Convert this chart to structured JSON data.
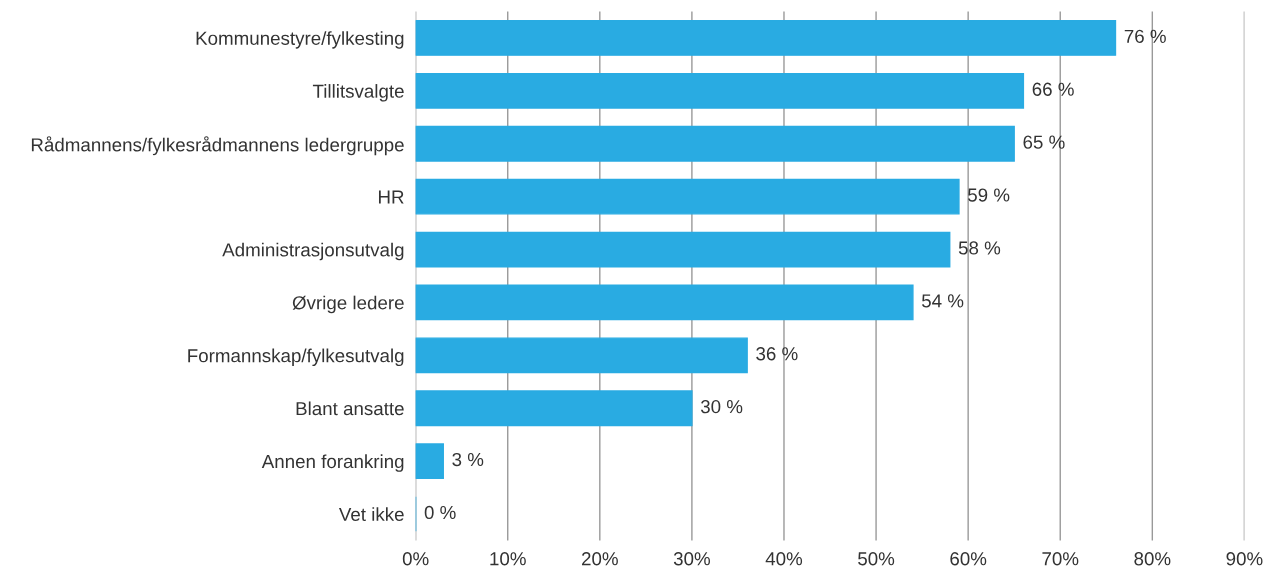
{
  "chart_data": {
    "type": "bar",
    "orientation": "horizontal",
    "categories": [
      "Kommunestyre/fylkesting",
      "Tillitsvalgte",
      "Rådmannens/fylkesrådmannens ledergruppe",
      "HR",
      "Administrasjonsutvalg",
      "Øvrige ledere",
      "Formannskap/fylkesutvalg",
      "Blant ansatte",
      "Annen forankring",
      "Vet ikke"
    ],
    "values": [
      76,
      66,
      65,
      59,
      58,
      54,
      36,
      30,
      3,
      0
    ],
    "value_labels": [
      "76 %",
      "66 %",
      "65 %",
      "59 %",
      "58 %",
      "54 %",
      "36 %",
      "30 %",
      "3 %",
      "0 %"
    ],
    "color": "#29abe2",
    "xlim": [
      0,
      90
    ],
    "xticks": [
      {
        "value": 0,
        "label": "0%"
      },
      {
        "value": 10,
        "label": "10%"
      },
      {
        "value": 20,
        "label": "20%"
      },
      {
        "value": 30,
        "label": "30%"
      },
      {
        "value": 40,
        "label": "40%"
      },
      {
        "value": 50,
        "label": "50%"
      },
      {
        "value": 60,
        "label": "60%"
      },
      {
        "value": 70,
        "label": "70%"
      },
      {
        "value": 80,
        "label": "80%"
      },
      {
        "value": 90,
        "label": "90%"
      }
    ],
    "grid": "x"
  }
}
